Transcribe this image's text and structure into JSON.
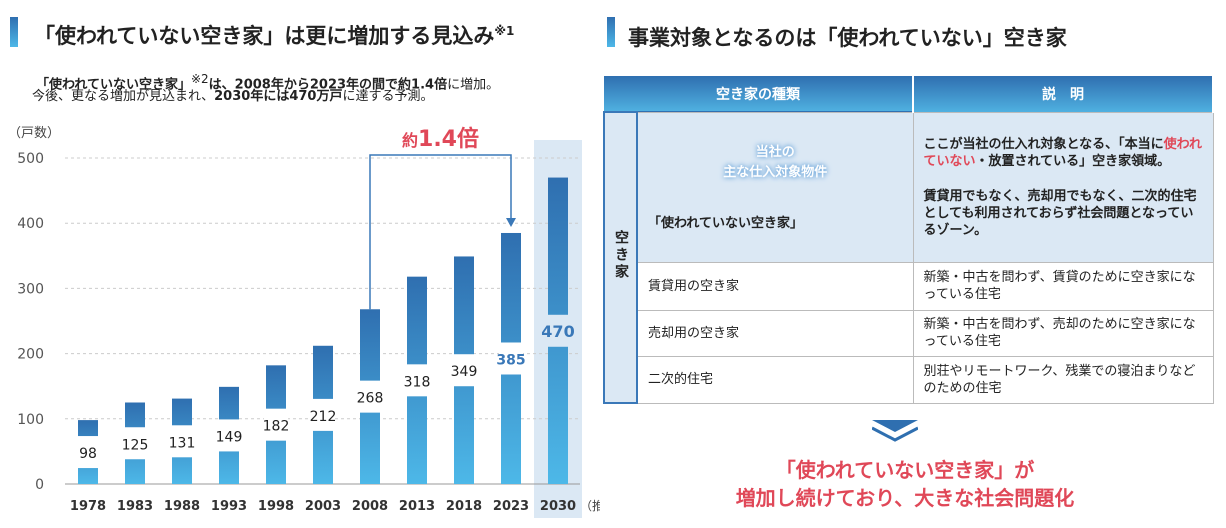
{
  "left": {
    "title": "「使われていない空き家」は更に増加する見込み",
    "title_note": "※1",
    "sub1_a": "「使われていない空き家」",
    "sub1_note": "※2",
    "sub1_b": "は、2008年から2023年の間で約1.4倍",
    "sub1_c": "に増加。",
    "sub2_a": "今後、更なる増加が見込まれ、",
    "sub2_b": "2030年には470万戸",
    "sub2_c": "に達する予測。"
  },
  "chart_data": {
    "type": "bar",
    "ylabel": "（戸数）",
    "ylim": [
      0,
      500
    ],
    "yticks": [
      "0",
      "100",
      "200",
      "300",
      "400",
      "500"
    ],
    "categories": [
      "1978",
      "1983",
      "1988",
      "1993",
      "1998",
      "2003",
      "2008",
      "2013",
      "2018",
      "2023",
      "2030"
    ],
    "values": [
      98,
      125,
      131,
      149,
      182,
      212,
      268,
      318,
      349,
      385,
      470
    ],
    "value_labels": [
      "98",
      "125",
      "131",
      "149",
      "182",
      "212",
      "268",
      "318",
      "349",
      "385",
      "470"
    ],
    "x_note": "（推計）",
    "annotation": {
      "prefix": "約",
      "value": "1.4倍",
      "from": "2008",
      "to": "2023"
    },
    "highlight": "2030",
    "grid": true
  },
  "right": {
    "title": "事業対象となるのは「使われていない」空き家",
    "headers": [
      "空き家の種類",
      "説　明"
    ],
    "side_label": "空き家",
    "highlight": {
      "badge1": "当社の",
      "badge2": "主な仕入対象物件",
      "type": "「使われていない空き家」",
      "desc1_a": "ここが当社の仕入れ対象となる、「本当に",
      "desc1_red": "使われていない",
      "desc1_b": "・放置されている」空き家領域。",
      "desc2": "賃貸用でもなく、売却用でもなく、二次的住宅としても利用されておらず社会問題となっているゾーン。"
    },
    "rows": [
      {
        "type": "賃貸用の空き家",
        "desc": "新築・中古を問わず、賃貸のために空き家になっている住宅"
      },
      {
        "type": "売却用の空き家",
        "desc": "新築・中古を問わず、売却のために空き家になっている住宅"
      },
      {
        "type": "二次的住宅",
        "desc": "別荘やリモートワーク、残業での寝泊まりなどのための住宅"
      }
    ],
    "conclusion1": "「使われていない空き家」が",
    "conclusion2": "増加し続けており、大きな社会問題化"
  },
  "colors": {
    "dark": "#2f6fb0",
    "light": "#4db8e8",
    "red": "#e04858"
  }
}
